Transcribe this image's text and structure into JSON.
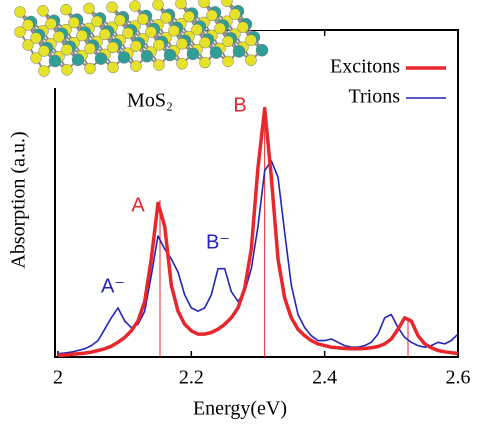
{
  "chart_data": {
    "type": "line",
    "x_label": "Energy(eV)",
    "y_label": "Absorption (a.u.)",
    "inset_label": "MoS₂",
    "annotations": [
      {
        "text": "A",
        "color": "#e8262b"
      },
      {
        "text": "B",
        "color": "#e8262b"
      },
      {
        "text": "A⁻",
        "color": "#2424b8"
      },
      {
        "text": "B⁻",
        "color": "#2424b8"
      }
    ],
    "x": [
      2.0,
      2.01,
      2.02,
      2.03,
      2.04,
      2.05,
      2.06,
      2.07,
      2.08,
      2.09,
      2.1,
      2.11,
      2.12,
      2.13,
      2.14,
      2.15,
      2.16,
      2.17,
      2.18,
      2.19,
      2.2,
      2.21,
      2.22,
      2.23,
      2.24,
      2.25,
      2.26,
      2.27,
      2.28,
      2.29,
      2.3,
      2.31,
      2.32,
      2.33,
      2.34,
      2.35,
      2.36,
      2.37,
      2.38,
      2.39,
      2.4,
      2.41,
      2.42,
      2.43,
      2.44,
      2.45,
      2.46,
      2.47,
      2.48,
      2.49,
      2.5,
      2.51,
      2.52,
      2.53,
      2.54,
      2.55,
      2.56,
      2.57,
      2.58,
      2.59,
      2.6
    ],
    "series": [
      {
        "name": "Excitons",
        "color": "#e8262b",
        "width": 3.5,
        "values": [
          0.005,
          0.006,
          0.008,
          0.01,
          0.012,
          0.015,
          0.02,
          0.025,
          0.033,
          0.045,
          0.06,
          0.08,
          0.11,
          0.17,
          0.3,
          0.47,
          0.4,
          0.22,
          0.14,
          0.1,
          0.08,
          0.07,
          0.07,
          0.075,
          0.085,
          0.1,
          0.12,
          0.15,
          0.21,
          0.33,
          0.58,
          0.76,
          0.55,
          0.3,
          0.18,
          0.12,
          0.085,
          0.065,
          0.05,
          0.04,
          0.035,
          0.03,
          0.028,
          0.026,
          0.025,
          0.025,
          0.026,
          0.028,
          0.032,
          0.04,
          0.055,
          0.085,
          0.12,
          0.11,
          0.065,
          0.04,
          0.028,
          0.02,
          0.016,
          0.013,
          0.011
        ],
        "stick_x": [
          2.153,
          2.31,
          2.525
        ],
        "stick_values": [
          0.48,
          0.76,
          0.12
        ]
      },
      {
        "name": "Trions",
        "color": "#2424b8",
        "width": 1.6,
        "values": [
          0.01,
          0.012,
          0.015,
          0.02,
          0.025,
          0.035,
          0.05,
          0.085,
          0.12,
          0.15,
          0.11,
          0.09,
          0.1,
          0.14,
          0.25,
          0.37,
          0.33,
          0.3,
          0.26,
          0.19,
          0.15,
          0.14,
          0.15,
          0.19,
          0.27,
          0.27,
          0.2,
          0.17,
          0.2,
          0.27,
          0.4,
          0.57,
          0.6,
          0.55,
          0.38,
          0.22,
          0.13,
          0.09,
          0.065,
          0.05,
          0.05,
          0.055,
          0.045,
          0.035,
          0.03,
          0.03,
          0.035,
          0.045,
          0.07,
          0.12,
          0.13,
          0.09,
          0.06,
          0.045,
          0.035,
          0.03,
          0.035,
          0.045,
          0.04,
          0.05,
          0.07
        ]
      }
    ],
    "xlim": [
      2,
      2.6
    ],
    "xticks": [
      2,
      2.2,
      2.4,
      2.6
    ],
    "ylim": [
      0,
      1
    ],
    "grid": false
  }
}
